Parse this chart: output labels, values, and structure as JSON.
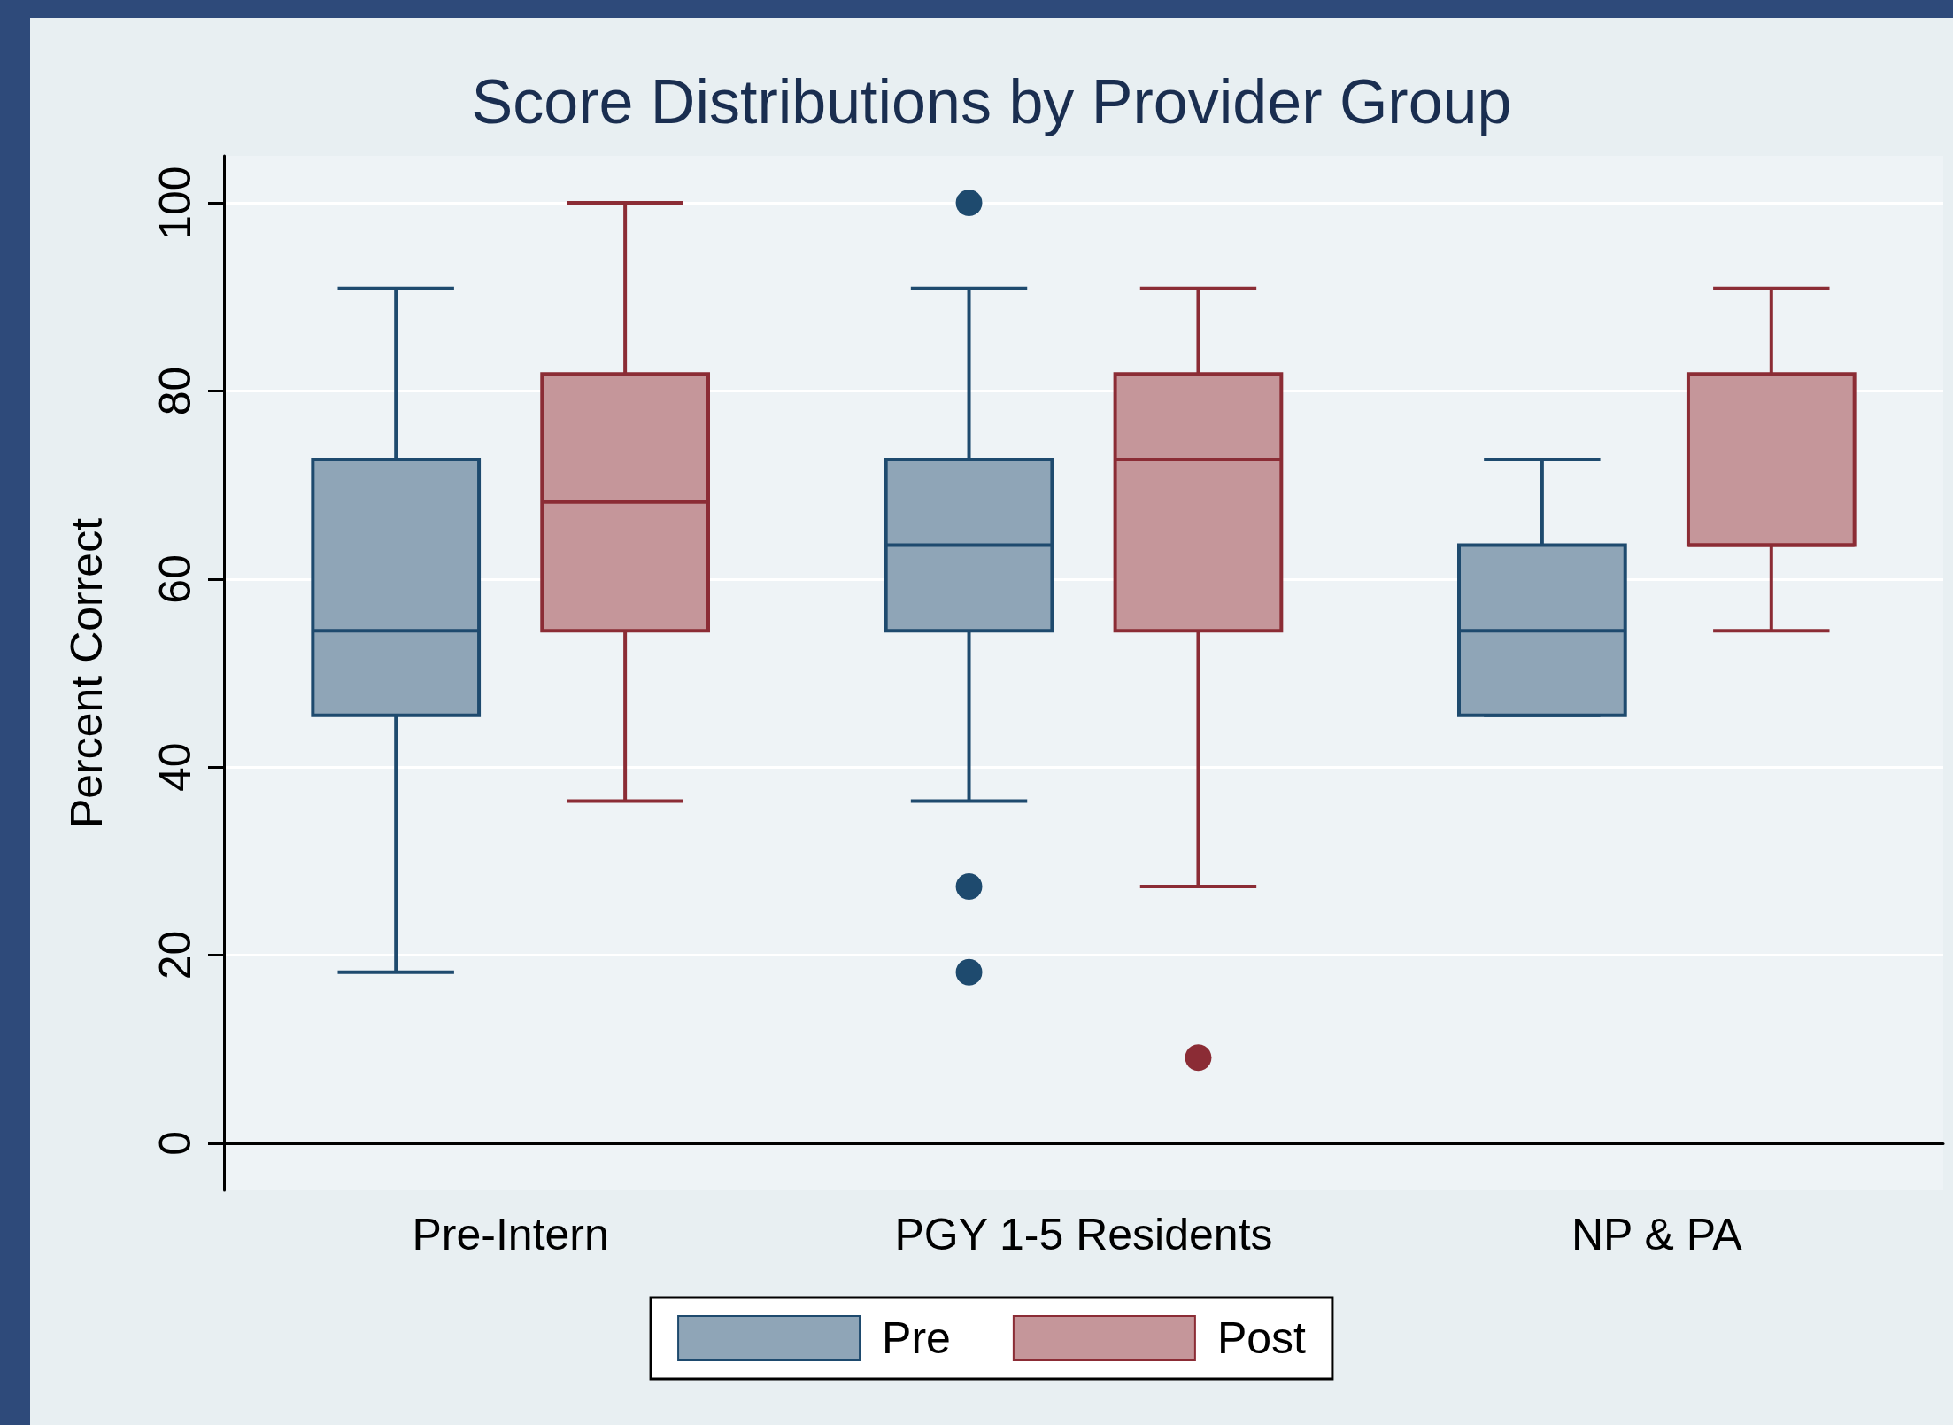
{
  "chart_data": {
    "type": "box",
    "title": "Score Distributions by Provider Group",
    "ylabel": "Percent Correct",
    "categories": [
      "Pre-Intern",
      "PGY 1-5 Residents",
      "NP & PA"
    ],
    "series": [
      {
        "name": "Pre",
        "color": "#1e4a6e",
        "boxes": [
          {
            "low": 18.2,
            "q1": 45.5,
            "median": 54.5,
            "q3": 72.7,
            "high": 90.9
          },
          {
            "low": 36.4,
            "q1": 54.5,
            "median": 63.6,
            "q3": 72.7,
            "high": 90.9,
            "outliers": [
              100,
              27.3,
              18.2
            ]
          },
          {
            "low": 45.5,
            "q1": 45.5,
            "median": 54.5,
            "q3": 63.6,
            "high": 72.7
          }
        ]
      },
      {
        "name": "Post",
        "color": "#8b2c35",
        "boxes": [
          {
            "low": 36.4,
            "q1": 54.5,
            "median": 68.2,
            "q3": 81.8,
            "high": 100
          },
          {
            "low": 27.3,
            "q1": 54.5,
            "median": 72.7,
            "q3": 81.8,
            "high": 90.9,
            "outliers": [
              9.1
            ]
          },
          {
            "low": 54.5,
            "q1": 63.6,
            "median": 63.6,
            "q3": 81.8,
            "high": 90.9
          }
        ]
      }
    ],
    "ylim": [
      -5,
      105
    ],
    "yticks": [
      0,
      20,
      40,
      60,
      80,
      100
    ],
    "grid": "y",
    "legend": "bottom"
  }
}
